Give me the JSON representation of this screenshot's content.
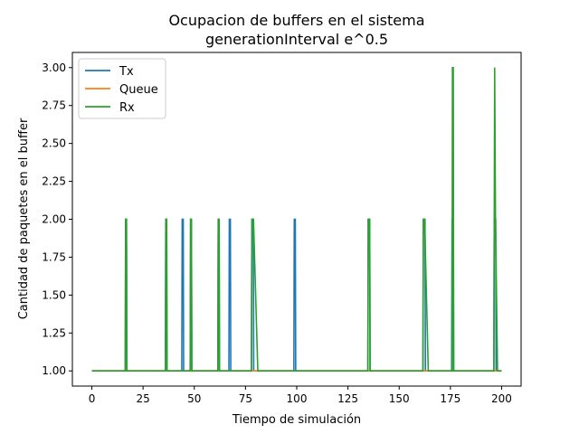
{
  "chart_data": {
    "type": "line",
    "title": [
      "Ocupacion de buffers en el sistema",
      "generationInterval e^0.5"
    ],
    "xlabel": "Tiempo de simulación",
    "ylabel": "Cantidad de paquetes en el buffer",
    "xlim": [
      -9.5,
      209.5
    ],
    "ylim": [
      0.9,
      3.1
    ],
    "xticks": [
      0,
      25,
      50,
      75,
      100,
      125,
      150,
      175,
      200
    ],
    "yticks": [
      1.0,
      1.25,
      1.5,
      1.75,
      2.0,
      2.25,
      2.5,
      2.75,
      3.0
    ],
    "ytick_labels": [
      "1.00",
      "1.25",
      "1.50",
      "1.75",
      "2.00",
      "2.25",
      "2.50",
      "2.75",
      "3.00"
    ],
    "grid": false,
    "legend_position": "upper-left",
    "series": [
      {
        "name": "Tx",
        "color": "#1f77b4",
        "x": [
          0,
          16.3,
          16.5,
          16.9,
          17.1,
          35.9,
          36.1,
          36.5,
          36.7,
          43.9,
          44.1,
          44.6,
          44.8,
          48.0,
          48.2,
          48.6,
          48.8,
          61.5,
          61.7,
          62.1,
          62.3,
          66.9,
          67.1,
          67.6,
          67.8,
          77.9,
          78.1,
          78.8,
          79.0,
          98.6,
          98.8,
          99.3,
          99.5,
          134.7,
          134.9,
          135.6,
          135.8,
          161.6,
          161.8,
          162.6,
          162.8,
          175.6,
          175.8,
          176.4,
          176.6,
          196.2,
          196.4,
          197.1,
          197.3,
          200
        ],
        "y": [
          1,
          1,
          2,
          2,
          1,
          1,
          2,
          2,
          1,
          1,
          2,
          2,
          1,
          1,
          2,
          2,
          1,
          1,
          2,
          2,
          1,
          1,
          2,
          2,
          1,
          1,
          2,
          2,
          1,
          1,
          2,
          2,
          1,
          1,
          2,
          2,
          1,
          1,
          2,
          2,
          1,
          1,
          2,
          2,
          1,
          1,
          2,
          2,
          1,
          1
        ]
      },
      {
        "name": "Queue",
        "color": "#ff7f0e",
        "x": [
          0,
          200
        ],
        "y": [
          1,
          1
        ]
      },
      {
        "name": "Rx",
        "color": "#2ca02c",
        "x": [
          0,
          16.3,
          16.5,
          16.9,
          17.1,
          35.9,
          36.1,
          36.5,
          36.7,
          48.0,
          48.2,
          48.6,
          48.8,
          61.5,
          61.7,
          62.1,
          62.3,
          77.9,
          78.1,
          78.9,
          81.0,
          134.7,
          134.9,
          135.6,
          135.8,
          161.6,
          161.8,
          162.4,
          164.2,
          175.8,
          176.0,
          176.4,
          176.6,
          196.2,
          196.6,
          197.0,
          198.0,
          200
        ],
        "y": [
          1,
          1,
          2,
          2,
          1,
          1,
          2,
          2,
          1,
          1,
          2,
          2,
          1,
          1,
          2,
          2,
          1,
          1,
          2,
          2,
          1,
          1,
          2,
          2,
          1,
          1,
          2,
          2,
          1,
          1,
          3,
          3,
          1,
          1,
          3,
          2,
          1,
          1
        ]
      }
    ]
  }
}
